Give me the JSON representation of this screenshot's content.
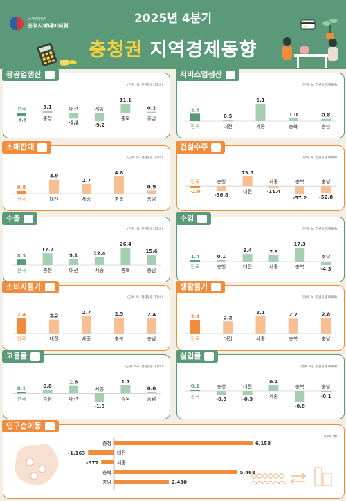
{
  "header": {
    "logo_sub": "국가데이터처",
    "logo_main": "충청지방데이터청",
    "period": "2025년 4분기",
    "title_highlight": "충청권",
    "title_rest": " 지역경제동향",
    "icons": [
      "calculator-icon",
      "people-at-table-icon",
      "credit-card-icon",
      "plant-icon"
    ]
  },
  "colors": {
    "green": "#5b9a78",
    "green_light": "#a4cfb3",
    "orange": "#f08c3c",
    "orange_light": "#f7bf92",
    "header_bg": "#5b9a78",
    "title_yellow": "#f6d23c",
    "page_bg": "#f3efe4"
  },
  "panels": [
    {
      "title": "광공업생산",
      "theme": "green",
      "icon": "factory-icon",
      "unit": "(단위: %, 전년동분기대비)",
      "chart_data": {
        "type": "bar",
        "categories": [
          "전국",
          "충청",
          "대전",
          "세종",
          "충북",
          "충남"
        ],
        "values": [
          -3.3,
          3.1,
          -6.2,
          -9.2,
          11.1,
          0.2
        ]
      }
    },
    {
      "title": "서비스업생산",
      "theme": "green",
      "icon": "service-icon",
      "unit": "(단위: %, 전년동분기대비)",
      "chart_data": {
        "type": "bar",
        "categories": [
          "전국",
          "대전",
          "세종",
          "충북",
          "충남"
        ],
        "values": [
          2.6,
          0.5,
          6.1,
          1.0,
          0.8
        ]
      }
    },
    {
      "title": "소매판매",
      "theme": "orange",
      "icon": "shop-icon",
      "unit": "(단위: %, 전년동분기대비)",
      "chart_data": {
        "type": "bar",
        "categories": [
          "전국",
          "대전",
          "세종",
          "충북",
          "충남"
        ],
        "values": [
          0.8,
          3.9,
          2.7,
          4.8,
          0.9
        ]
      }
    },
    {
      "title": "건설수주",
      "theme": "orange",
      "icon": "construction-icon",
      "unit": "(단위: %, 전년동분기대비)",
      "chart_data": {
        "type": "bar",
        "categories": [
          "전국",
          "충청",
          "대전",
          "세종",
          "충북",
          "충남"
        ],
        "values": [
          -2.0,
          -36.8,
          73.5,
          -11.4,
          -57.2,
          -52.8
        ]
      }
    },
    {
      "title": "수출",
      "theme": "green",
      "icon": "export-truck-icon",
      "unit": "(단위: %, 전년동분기대비)",
      "chart_data": {
        "type": "bar",
        "categories": [
          "전국",
          "충청",
          "대전",
          "세종",
          "충북",
          "충남"
        ],
        "values": [
          8.3,
          17.7,
          9.1,
          12.4,
          26.4,
          15.6
        ]
      }
    },
    {
      "title": "수입",
      "theme": "green",
      "icon": "import-truck-icon",
      "unit": "(단위: %, 전년동분기대비)",
      "chart_data": {
        "type": "bar",
        "categories": [
          "전국",
          "충청",
          "대전",
          "세종",
          "충북",
          "충남"
        ],
        "values": [
          1.4,
          0.1,
          9.4,
          7.9,
          17.3,
          -4.3
        ]
      }
    },
    {
      "title": "소비자물가",
      "theme": "orange",
      "icon": "store-icon",
      "unit": "(단위: %, 전년동분기대비)",
      "chart_data": {
        "type": "bar",
        "categories": [
          "전국",
          "대전",
          "세종",
          "충북",
          "충남"
        ],
        "values": [
          2.4,
          2.2,
          2.7,
          2.5,
          2.4
        ]
      }
    },
    {
      "title": "생활물가",
      "theme": "orange",
      "icon": "cart-icon",
      "unit": "(단위: %, 전년동분기대비)",
      "chart_data": {
        "type": "bar",
        "categories": [
          "전국",
          "대전",
          "세종",
          "충북",
          "충남"
        ],
        "values": [
          2.4,
          2.2,
          3.1,
          2.7,
          2.8
        ]
      }
    },
    {
      "title": "고용률",
      "theme": "green",
      "icon": "worker-icon",
      "unit": "(단위: %p, 전년동분기대비)",
      "chart_data": {
        "type": "bar",
        "categories": [
          "전국",
          "충청",
          "대전",
          "세종",
          "충북",
          "충남"
        ],
        "values": [
          0.1,
          0.8,
          1.6,
          -1.9,
          1.7,
          0.0
        ]
      }
    },
    {
      "title": "실업률",
      "theme": "green",
      "icon": "unemployed-icon",
      "unit": "(단위: %p, 전년동분기대비)",
      "chart_data": {
        "type": "bar",
        "categories": [
          "전국",
          "충청",
          "대전",
          "세종",
          "충북",
          "충남"
        ],
        "values": [
          0.1,
          -0.3,
          -0.3,
          0.4,
          -0.8,
          -0.1
        ]
      }
    }
  ],
  "population": {
    "title": "인구순이동",
    "icon": "population-icon",
    "unit": "(단위: 명)",
    "chart_data": {
      "type": "bar",
      "orientation": "horizontal",
      "categories": [
        "충청",
        "대전",
        "세종",
        "충북",
        "충남"
      ],
      "values": [
        6158,
        -1163,
        -577,
        5468,
        2430
      ],
      "labels": [
        "6,158",
        "-1,163",
        "-577",
        "5,468",
        "2,430"
      ]
    }
  }
}
